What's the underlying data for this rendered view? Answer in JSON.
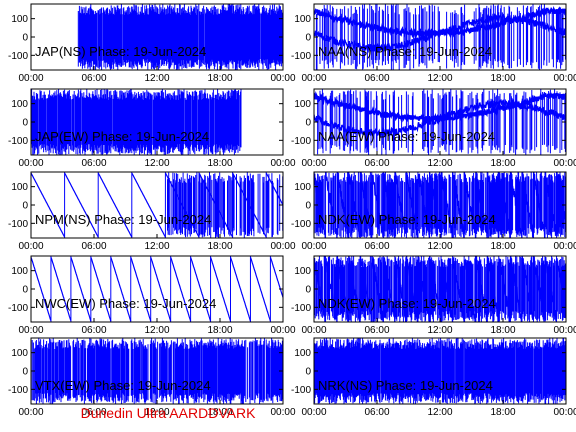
{
  "footer": {
    "text": "Dunedin Ultra AARDDVARK",
    "color": "#e00000"
  },
  "style": {
    "trace_color": "#0000ff",
    "frame_color": "#000000"
  },
  "chart_data": [
    {
      "type": "line",
      "title": "JAP(NS) Phase: 19-Jun-2024",
      "x_ticks": [
        "00:00",
        "06:00",
        "12:00",
        "18:00",
        "00:00"
      ],
      "y_ticks": [
        "100",
        "0",
        "-100"
      ],
      "xlim": [
        0,
        24
      ],
      "ylim": [
        -180,
        180
      ],
      "pattern": "noise",
      "density": 0.97,
      "noise_start": 4.5,
      "noise_end": 24
    },
    {
      "type": "line",
      "title": "NAA(NS) Phase: 19-Jun-2024",
      "x_ticks": [
        "00:00",
        "06:00",
        "12:00",
        "18:00",
        "00:00"
      ],
      "y_ticks": [
        "100",
        "0",
        "-100"
      ],
      "xlim": [
        0,
        24
      ],
      "ylim": [
        -180,
        180
      ],
      "pattern": "mixed",
      "density": 0.35,
      "noise_start": 0,
      "noise_end": 24
    },
    {
      "type": "line",
      "title": "JAP(EW) Phase: 19-Jun-2024",
      "x_ticks": [
        "00:00",
        "06:00",
        "12:00",
        "18:00",
        "00:00"
      ],
      "y_ticks": [
        "100",
        "0",
        "-100"
      ],
      "xlim": [
        0,
        24
      ],
      "ylim": [
        -180,
        180
      ],
      "pattern": "noise",
      "density": 0.97,
      "noise_start": 0,
      "noise_end": 20
    },
    {
      "type": "line",
      "title": "NAA(EW) Phase: 19-Jun-2024",
      "x_ticks": [
        "00:00",
        "06:00",
        "12:00",
        "18:00",
        "00:00"
      ],
      "y_ticks": [
        "100",
        "0",
        "-100"
      ],
      "xlim": [
        0,
        24
      ],
      "ylim": [
        -180,
        180
      ],
      "pattern": "mixed",
      "density": 0.3,
      "noise_start": 0,
      "noise_end": 24
    },
    {
      "type": "line",
      "title": "NPM(NS) Phase: 19-Jun-2024",
      "x_ticks": [
        "00:00",
        "06:00",
        "12:00",
        "18:00",
        "00:00"
      ],
      "y_ticks": [
        "100",
        "0",
        "-100"
      ],
      "xlim": [
        0,
        24
      ],
      "ylim": [
        -180,
        180
      ],
      "pattern": "sawtooth",
      "density": 0.5,
      "noise_start": 13,
      "noise_end": 24,
      "period": 3.2
    },
    {
      "type": "line",
      "title": "NDK(EW) Phase: 19-Jun-2024",
      "x_ticks": [
        "00:00",
        "06:00",
        "12:00",
        "18:00",
        "00:00"
      ],
      "y_ticks": [
        "100",
        "0",
        "-100"
      ],
      "xlim": [
        0,
        24
      ],
      "ylim": [
        -180,
        180
      ],
      "pattern": "sawtooth_dense",
      "density": 0.75,
      "noise_start": 0,
      "noise_end": 24,
      "period": 1.1
    },
    {
      "type": "line",
      "title": "NWC(EW) Phase: 19-Jun-2024",
      "x_ticks": [
        "00:00",
        "06:00",
        "12:00",
        "18:00",
        "00:00"
      ],
      "y_ticks": [
        "100",
        "0",
        "-100"
      ],
      "xlim": [
        0,
        24
      ],
      "ylim": [
        -180,
        180
      ],
      "pattern": "sawtooth",
      "density": 0,
      "noise_start": 24,
      "noise_end": 24,
      "period": 1.9
    },
    {
      "type": "line",
      "title": "NDK(EW) Phase: 19-Jun-2024",
      "x_ticks": [
        "00:00",
        "06:00",
        "12:00",
        "18:00",
        "00:00"
      ],
      "y_ticks": [
        "100",
        "0",
        "-100"
      ],
      "xlim": [
        0,
        24
      ],
      "ylim": [
        -180,
        180
      ],
      "pattern": "sawtooth_dense",
      "density": 0.8,
      "noise_start": 0,
      "noise_end": 24,
      "period": 1.1
    },
    {
      "type": "line",
      "title": "VTX(EW) Phase: 19-Jun-2024",
      "x_ticks": [
        "00:00",
        "06:00",
        "12:00",
        "18:00",
        "00:00"
      ],
      "y_ticks": [
        "100",
        "0",
        "-100"
      ],
      "xlim": [
        0,
        24
      ],
      "ylim": [
        -180,
        180
      ],
      "pattern": "noise",
      "density": 0.85,
      "noise_start": 0,
      "noise_end": 24
    },
    {
      "type": "line",
      "title": "NRK(NS) Phase: 19-Jun-2024",
      "x_ticks": [
        "00:00",
        "06:00",
        "12:00",
        "18:00",
        "00:00"
      ],
      "y_ticks": [
        "100",
        "0",
        "-100"
      ],
      "xlim": [
        0,
        24
      ],
      "ylim": [
        -180,
        180
      ],
      "pattern": "noise",
      "density": 0.98,
      "noise_start": 0,
      "noise_end": 24
    }
  ]
}
